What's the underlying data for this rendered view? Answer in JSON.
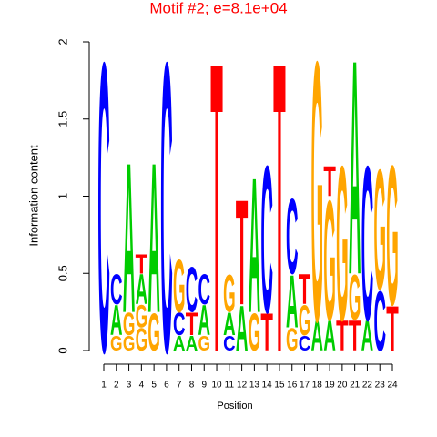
{
  "chart_data": {
    "type": "logo",
    "title": "Motif #2; e=8.1e+04",
    "title_color": "#ff0000",
    "xlabel": "Position",
    "ylabel": "Information content",
    "x": [
      1,
      2,
      3,
      4,
      5,
      6,
      7,
      8,
      9,
      10,
      11,
      12,
      13,
      14,
      15,
      16,
      17,
      18,
      19,
      20,
      21,
      22,
      23,
      24
    ],
    "xlim": [
      1,
      24
    ],
    "xticks": [
      1,
      2,
      3,
      4,
      5,
      6,
      7,
      8,
      9,
      10,
      11,
      12,
      13,
      14,
      15,
      16,
      17,
      18,
      19,
      20,
      21,
      22,
      23,
      24
    ],
    "ylim": [
      0,
      2
    ],
    "yticks": [
      0,
      0.5,
      1,
      1.5,
      2
    ],
    "colors": {
      "A": "#00cc00",
      "C": "#0000ff",
      "G": "#ffa500",
      "T": "#ff0000"
    },
    "stacks": [
      [
        {
          "letter": "C",
          "value": 1.93
        }
      ],
      [
        {
          "letter": "G",
          "value": 0.1
        },
        {
          "letter": "A",
          "value": 0.2
        },
        {
          "letter": "C",
          "value": 0.2
        }
      ],
      [
        {
          "letter": "G",
          "value": 0.1
        },
        {
          "letter": "G",
          "value": 0.15
        },
        {
          "letter": "A",
          "value": 1.0
        }
      ],
      [
        {
          "letter": "G",
          "value": 0.15
        },
        {
          "letter": "G",
          "value": 0.15
        },
        {
          "letter": "A",
          "value": 0.2
        },
        {
          "letter": "T",
          "value": 0.13
        }
      ],
      [
        {
          "letter": "G",
          "value": 0.25
        },
        {
          "letter": "A",
          "value": 1.0
        }
      ],
      [
        {
          "letter": "C",
          "value": 1.93
        }
      ],
      [
        {
          "letter": "A",
          "value": 0.1
        },
        {
          "letter": "C",
          "value": 0.15
        },
        {
          "letter": "G",
          "value": 0.35
        }
      ],
      [
        {
          "letter": "A",
          "value": 0.1
        },
        {
          "letter": "T",
          "value": 0.15
        },
        {
          "letter": "C",
          "value": 0.3
        }
      ],
      [
        {
          "letter": "G",
          "value": 0.1
        },
        {
          "letter": "A",
          "value": 0.2
        },
        {
          "letter": "C",
          "value": 0.2
        }
      ],
      [
        {
          "letter": "T",
          "value": 1.93
        }
      ],
      [
        {
          "letter": "C",
          "value": 0.1
        },
        {
          "letter": "A",
          "value": 0.15
        },
        {
          "letter": "G",
          "value": 0.25
        }
      ],
      [
        {
          "letter": "A",
          "value": 0.3
        },
        {
          "letter": "T",
          "value": 0.7
        }
      ],
      [
        {
          "letter": "G",
          "value": 0.25
        },
        {
          "letter": "A",
          "value": 0.9
        }
      ],
      [
        {
          "letter": "T",
          "value": 0.25
        },
        {
          "letter": "C",
          "value": 0.98
        }
      ],
      [
        {
          "letter": "T",
          "value": 1.93
        }
      ],
      [
        {
          "letter": "G",
          "value": 0.15
        },
        {
          "letter": "A",
          "value": 0.35
        },
        {
          "letter": "C",
          "value": 0.5
        }
      ],
      [
        {
          "letter": "C",
          "value": 0.1
        },
        {
          "letter": "G",
          "value": 0.2
        },
        {
          "letter": "T",
          "value": 0.2
        }
      ],
      [
        {
          "letter": "A",
          "value": 0.2
        },
        {
          "letter": "G",
          "value": 1.73
        }
      ],
      [
        {
          "letter": "A",
          "value": 0.2
        },
        {
          "letter": "G",
          "value": 0.8
        },
        {
          "letter": "T",
          "value": 0.2
        }
      ],
      [
        {
          "letter": "T",
          "value": 0.2
        },
        {
          "letter": "G",
          "value": 1.03
        }
      ],
      [
        {
          "letter": "T",
          "value": 0.2
        },
        {
          "letter": "G",
          "value": 0.3
        },
        {
          "letter": "A",
          "value": 1.43
        }
      ],
      [
        {
          "letter": "A",
          "value": 0.2
        },
        {
          "letter": "C",
          "value": 1.03
        }
      ],
      [
        {
          "letter": "C",
          "value": 0.4
        },
        {
          "letter": "G",
          "value": 0.8
        }
      ],
      [
        {
          "letter": "T",
          "value": 0.3
        },
        {
          "letter": "G",
          "value": 0.93
        }
      ]
    ]
  }
}
